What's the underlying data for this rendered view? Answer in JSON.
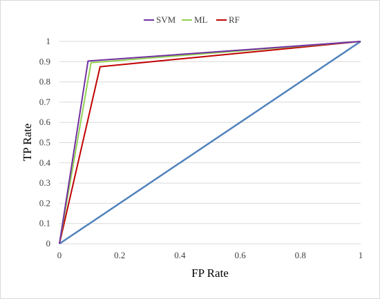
{
  "chart_data": {
    "type": "line",
    "xlabel": "FP Rate",
    "ylabel": "TP Rate",
    "xlim": [
      0,
      1
    ],
    "ylim": [
      0,
      1
    ],
    "x_ticks": [
      "0",
      "0.2",
      "0.4",
      "0.6",
      "0.8",
      "1"
    ],
    "y_ticks": [
      "0",
      "0.1",
      "0.2",
      "0.3",
      "0.4",
      "0.5",
      "0.6",
      "0.7",
      "0.8",
      "0.9",
      "1"
    ],
    "grid": "horizontal",
    "legend_position": "top",
    "series": [
      {
        "name": "SVM",
        "color": "#7030a0",
        "x": [
          0,
          0.095,
          1
        ],
        "y": [
          0,
          0.903,
          1
        ]
      },
      {
        "name": "ML",
        "color": "#92d050",
        "x": [
          0,
          0.105,
          1
        ],
        "y": [
          0,
          0.895,
          1
        ]
      },
      {
        "name": "RF",
        "color": "#c00000",
        "x": [
          0,
          0.135,
          1
        ],
        "y": [
          0,
          0.875,
          1
        ]
      }
    ],
    "reference_line": {
      "color": "#4f81bd",
      "x": [
        0,
        1
      ],
      "y": [
        0,
        1
      ]
    }
  }
}
